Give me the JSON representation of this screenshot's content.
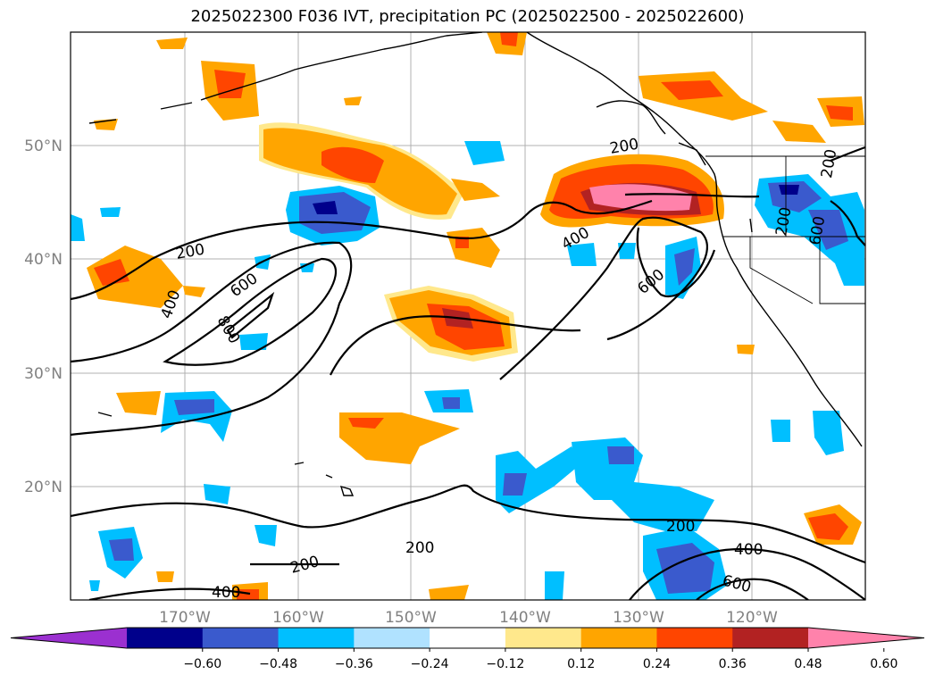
{
  "title": "2025022300 F036 IVT, precipitation PC (2025022500 - 2025022600)",
  "map": {
    "lon_labels": [
      "170°W",
      "160°W",
      "150°W",
      "140°W",
      "130°W",
      "120°W"
    ],
    "lat_labels": [
      "50°N",
      "40°N",
      "30°N",
      "20°N"
    ],
    "gridlines": true,
    "ivt_contour_labels": [
      "200",
      "400",
      "600",
      "800",
      "600",
      "400",
      "200",
      "400",
      "600",
      "200",
      "200",
      "200",
      "400",
      "600",
      "200",
      "200"
    ]
  },
  "colorbar": {
    "ticks": [
      "−0.60",
      "−0.48",
      "−0.36",
      "−0.24",
      "−0.12",
      "0.12",
      "0.24",
      "0.36",
      "0.48",
      "0.60"
    ],
    "colors": [
      "#9b30d0",
      "#00008b",
      "#3a5acd",
      "#00bfff",
      "#b0e2ff",
      "#ffffff",
      "#ffe88c",
      "#ffa500",
      "#ff4500",
      "#b22222",
      "#ff82ab"
    ],
    "extend": "both"
  }
}
